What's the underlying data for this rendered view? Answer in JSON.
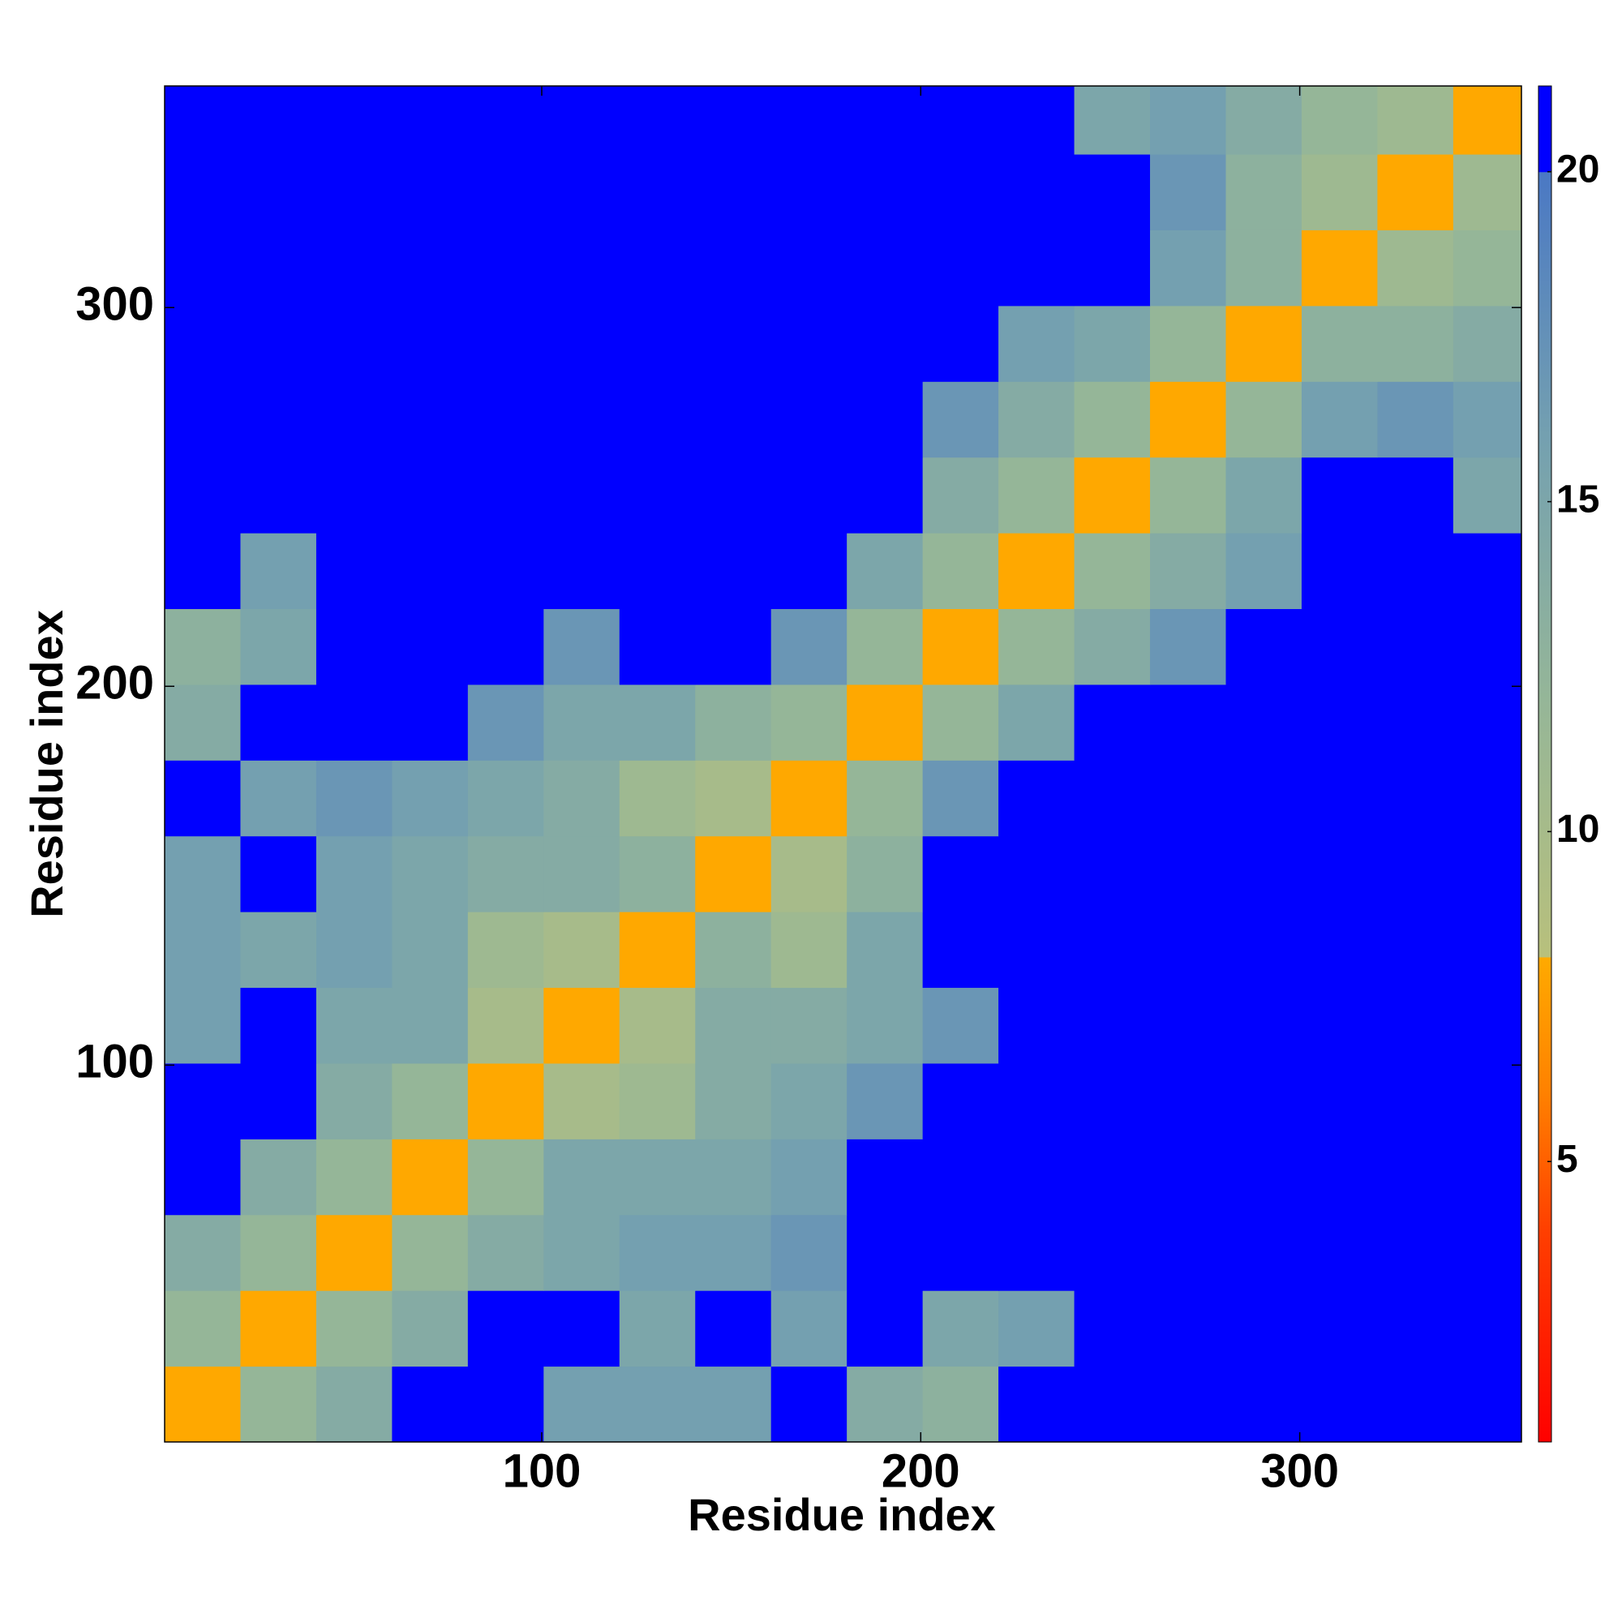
{
  "chart_data": {
    "type": "heatmap",
    "x_label": "Residue index",
    "y_label": "Residue index",
    "xbins": [
      0.5,
      20.5,
      40.5,
      60.5,
      80.5,
      100.5,
      120.5,
      140.5,
      160.5,
      180.5,
      200.5,
      220.5,
      240.5,
      260.5,
      280.5,
      300.5,
      320.5,
      340.5,
      358.5
    ],
    "ybins": [
      0.5,
      20.5,
      40.5,
      60.5,
      80.5,
      100.5,
      120.5,
      140.5,
      160.5,
      180.5,
      200.5,
      220.5,
      240.5,
      260.5,
      280.5,
      300.5,
      320.5,
      340.5,
      358.5
    ],
    "xlim": [
      0.5,
      358.5
    ],
    "ylim": [
      0.5,
      358.5
    ],
    "xticks": [
      100,
      200,
      300
    ],
    "yticks": [
      100,
      200,
      300
    ],
    "z": [
      [
        8,
        12,
        14,
        21,
        21,
        16,
        16,
        16,
        21,
        14,
        13,
        21,
        21,
        21,
        21,
        21,
        21,
        21
      ],
      [
        12,
        8,
        12,
        14,
        21,
        21,
        15,
        21,
        16,
        21,
        15,
        16,
        21,
        21,
        21,
        21,
        21,
        21
      ],
      [
        14,
        12,
        8,
        12,
        14,
        15,
        16,
        16,
        17,
        21,
        21,
        21,
        21,
        21,
        21,
        21,
        21,
        21
      ],
      [
        21,
        14,
        12,
        8,
        12,
        15,
        15,
        15,
        16,
        21,
        21,
        21,
        21,
        21,
        21,
        21,
        21,
        21
      ],
      [
        21,
        21,
        14,
        12,
        8,
        10,
        11,
        14,
        15,
        17,
        21,
        21,
        21,
        21,
        21,
        21,
        21,
        21
      ],
      [
        16,
        21,
        15,
        15,
        10,
        8,
        10,
        14,
        14,
        15,
        17,
        21,
        21,
        21,
        21,
        21,
        21,
        21
      ],
      [
        16,
        15,
        16,
        15,
        11,
        10,
        8,
        13,
        11,
        15,
        21,
        21,
        21,
        21,
        21,
        21,
        21,
        21
      ],
      [
        16,
        21,
        16,
        15,
        14,
        14,
        13,
        8,
        10,
        13,
        21,
        21,
        21,
        21,
        21,
        21,
        21,
        21
      ],
      [
        21,
        16,
        17,
        16,
        15,
        14,
        11,
        10,
        8,
        12,
        17,
        21,
        21,
        21,
        21,
        21,
        21,
        21
      ],
      [
        14,
        21,
        21,
        21,
        17,
        15,
        15,
        13,
        12,
        8,
        12,
        15,
        21,
        21,
        21,
        21,
        21,
        21
      ],
      [
        13,
        15,
        21,
        21,
        21,
        17,
        21,
        21,
        17,
        12,
        8,
        12,
        14,
        17,
        21,
        21,
        21,
        21
      ],
      [
        21,
        16,
        21,
        21,
        21,
        21,
        21,
        21,
        21,
        15,
        12,
        8,
        12,
        14,
        16,
        21,
        21,
        21
      ],
      [
        21,
        21,
        21,
        21,
        21,
        21,
        21,
        21,
        21,
        21,
        14,
        12,
        8,
        12,
        15,
        21,
        21,
        15
      ],
      [
        21,
        21,
        21,
        21,
        21,
        21,
        21,
        21,
        21,
        21,
        17,
        14,
        12,
        8,
        12,
        16,
        17,
        16
      ],
      [
        21,
        21,
        21,
        21,
        21,
        21,
        21,
        21,
        21,
        21,
        21,
        16,
        15,
        12,
        8,
        13,
        13,
        14
      ],
      [
        21,
        21,
        21,
        21,
        21,
        21,
        21,
        21,
        21,
        21,
        21,
        21,
        21,
        16,
        13,
        8,
        11,
        12
      ],
      [
        21,
        21,
        21,
        21,
        21,
        21,
        21,
        21,
        21,
        21,
        21,
        21,
        21,
        17,
        13,
        11,
        8,
        11
      ],
      [
        21,
        21,
        21,
        21,
        21,
        21,
        21,
        21,
        21,
        21,
        21,
        21,
        15,
        16,
        14,
        12,
        11,
        8
      ]
    ],
    "clim": [
      0.75,
      21.3
    ],
    "cticks": [
      5,
      10,
      15,
      20
    ],
    "colorscale": [
      {
        "value": 0.75,
        "color": "#ff0000"
      },
      {
        "value": 4,
        "color": "#ff4000"
      },
      {
        "value": 6,
        "color": "#ff8000"
      },
      {
        "value": 8.1,
        "color": "#ffaa00"
      },
      {
        "value": 8.1,
        "color": "#b8c07c"
      },
      {
        "value": 12,
        "color": "#95b698"
      },
      {
        "value": 16,
        "color": "#74a0b0"
      },
      {
        "value": 20,
        "color": "#4a78c4"
      },
      {
        "value": 20,
        "color": "#0000ff"
      },
      {
        "value": 21.3,
        "color": "#0000ff"
      }
    ]
  }
}
